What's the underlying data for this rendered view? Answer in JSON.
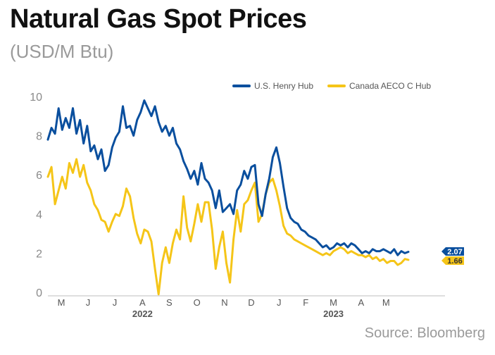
{
  "header": {
    "title": "Natural Gas Spot Prices",
    "subtitle": "(USD/M Btu)"
  },
  "footer": {
    "source": "Source: Bloomberg"
  },
  "chart_data": {
    "type": "line",
    "title": "Natural Gas Spot Prices",
    "subtitle": "(USD/M Btu)",
    "xlabel": "",
    "ylabel": "",
    "ylim": [
      0,
      10
    ],
    "yticks": [
      0,
      2,
      4,
      6,
      8,
      10
    ],
    "xlim": [
      "2022-03-01",
      "2023-05-20"
    ],
    "month_ticks": [
      {
        "label": "M",
        "date": "2022-03-16"
      },
      {
        "label": "J",
        "date": "2022-04-15"
      },
      {
        "label": "J",
        "date": "2022-05-15"
      },
      {
        "label": "A",
        "date": "2022-06-15"
      },
      {
        "label": "S",
        "date": "2022-07-15"
      },
      {
        "label": "O",
        "date": "2022-08-15"
      },
      {
        "label": "N",
        "date": "2022-09-15"
      },
      {
        "label": "D",
        "date": "2022-10-15"
      },
      {
        "label": "J",
        "date": "2022-11-15"
      },
      {
        "label": "F",
        "date": "2022-12-15"
      },
      {
        "label": "M",
        "date": "2023-01-15"
      },
      {
        "label": "A",
        "date": "2023-02-15"
      },
      {
        "label": "M",
        "date": "2023-03-15"
      }
    ],
    "year_labels": [
      {
        "label": "2022",
        "date": "2022-06-15"
      },
      {
        "label": "2023",
        "date": "2023-01-15"
      }
    ],
    "grid": false,
    "legend_position": "top-right",
    "series": [
      {
        "name": "U.S. Henry Hub",
        "color": "#0a4f9e",
        "end_label": "2.07",
        "points": [
          [
            "2022-03-01",
            7.8
          ],
          [
            "2022-03-05",
            8.4
          ],
          [
            "2022-03-09",
            8.1
          ],
          [
            "2022-03-13",
            9.4
          ],
          [
            "2022-03-17",
            8.3
          ],
          [
            "2022-03-21",
            8.9
          ],
          [
            "2022-03-25",
            8.4
          ],
          [
            "2022-03-29",
            9.4
          ],
          [
            "2022-04-02",
            8.1
          ],
          [
            "2022-04-06",
            8.8
          ],
          [
            "2022-04-10",
            7.6
          ],
          [
            "2022-04-14",
            8.5
          ],
          [
            "2022-04-18",
            7.2
          ],
          [
            "2022-04-22",
            7.5
          ],
          [
            "2022-04-26",
            6.8
          ],
          [
            "2022-04-30",
            7.3
          ],
          [
            "2022-05-04",
            6.2
          ],
          [
            "2022-05-08",
            6.5
          ],
          [
            "2022-05-12",
            7.4
          ],
          [
            "2022-05-16",
            7.9
          ],
          [
            "2022-05-20",
            8.2
          ],
          [
            "2022-05-24",
            9.5
          ],
          [
            "2022-05-28",
            8.4
          ],
          [
            "2022-06-01",
            8.5
          ],
          [
            "2022-06-05",
            8.0
          ],
          [
            "2022-06-09",
            8.8
          ],
          [
            "2022-06-13",
            9.2
          ],
          [
            "2022-06-17",
            9.8
          ],
          [
            "2022-06-21",
            9.4
          ],
          [
            "2022-06-25",
            9.0
          ],
          [
            "2022-06-29",
            9.5
          ],
          [
            "2022-07-03",
            8.7
          ],
          [
            "2022-07-07",
            8.2
          ],
          [
            "2022-07-11",
            8.5
          ],
          [
            "2022-07-15",
            8.0
          ],
          [
            "2022-07-19",
            8.4
          ],
          [
            "2022-07-23",
            7.6
          ],
          [
            "2022-07-27",
            7.3
          ],
          [
            "2022-07-31",
            6.7
          ],
          [
            "2022-08-04",
            6.3
          ],
          [
            "2022-08-08",
            5.8
          ],
          [
            "2022-08-12",
            6.2
          ],
          [
            "2022-08-16",
            5.5
          ],
          [
            "2022-08-20",
            6.6
          ],
          [
            "2022-08-24",
            5.8
          ],
          [
            "2022-08-28",
            5.6
          ],
          [
            "2022-09-01",
            5.2
          ],
          [
            "2022-09-05",
            4.3
          ],
          [
            "2022-09-09",
            5.2
          ],
          [
            "2022-09-13",
            4.1
          ],
          [
            "2022-09-17",
            4.3
          ],
          [
            "2022-09-21",
            4.5
          ],
          [
            "2022-09-25",
            4.0
          ],
          [
            "2022-09-29",
            5.2
          ],
          [
            "2022-10-03",
            5.5
          ],
          [
            "2022-10-07",
            6.2
          ],
          [
            "2022-10-11",
            5.8
          ],
          [
            "2022-10-15",
            6.4
          ],
          [
            "2022-10-19",
            6.5
          ],
          [
            "2022-10-23",
            4.5
          ],
          [
            "2022-10-27",
            3.9
          ],
          [
            "2022-10-31",
            5.0
          ],
          [
            "2022-11-04",
            5.8
          ],
          [
            "2022-11-08",
            6.9
          ],
          [
            "2022-11-12",
            7.4
          ],
          [
            "2022-11-16",
            6.6
          ],
          [
            "2022-11-20",
            5.4
          ],
          [
            "2022-11-24",
            4.3
          ],
          [
            "2022-11-28",
            3.8
          ],
          [
            "2022-12-02",
            3.6
          ],
          [
            "2022-12-06",
            3.5
          ],
          [
            "2022-12-10",
            3.2
          ],
          [
            "2022-12-14",
            3.1
          ],
          [
            "2022-12-18",
            2.9
          ],
          [
            "2022-12-22",
            2.8
          ],
          [
            "2022-12-26",
            2.7
          ],
          [
            "2022-12-30",
            2.5
          ],
          [
            "2023-01-03",
            2.3
          ],
          [
            "2023-01-07",
            2.4
          ],
          [
            "2023-01-11",
            2.2
          ],
          [
            "2023-01-15",
            2.3
          ],
          [
            "2023-01-19",
            2.5
          ],
          [
            "2023-01-23",
            2.4
          ],
          [
            "2023-01-27",
            2.5
          ],
          [
            "2023-01-31",
            2.3
          ],
          [
            "2023-02-04",
            2.5
          ],
          [
            "2023-02-08",
            2.4
          ],
          [
            "2023-02-12",
            2.2
          ],
          [
            "2023-02-16",
            2.0
          ],
          [
            "2023-02-20",
            2.1
          ],
          [
            "2023-02-24",
            2.0
          ],
          [
            "2023-02-28",
            2.2
          ],
          [
            "2023-03-04",
            2.1
          ],
          [
            "2023-03-08",
            2.1
          ],
          [
            "2023-03-12",
            2.2
          ],
          [
            "2023-03-16",
            2.1
          ],
          [
            "2023-03-20",
            2.0
          ],
          [
            "2023-03-24",
            2.2
          ],
          [
            "2023-03-28",
            1.9
          ],
          [
            "2023-04-01",
            2.1
          ],
          [
            "2023-04-05",
            2.0
          ],
          [
            "2023-04-09",
            2.07
          ]
        ]
      },
      {
        "name": "Canada AECO C Hub",
        "color": "#f5c518",
        "end_label": "1.66",
        "points": [
          [
            "2022-03-01",
            5.9
          ],
          [
            "2022-03-05",
            6.4
          ],
          [
            "2022-03-09",
            4.5
          ],
          [
            "2022-03-13",
            5.2
          ],
          [
            "2022-03-17",
            5.9
          ],
          [
            "2022-03-21",
            5.3
          ],
          [
            "2022-03-25",
            6.6
          ],
          [
            "2022-03-29",
            6.1
          ],
          [
            "2022-04-02",
            6.8
          ],
          [
            "2022-04-06",
            5.9
          ],
          [
            "2022-04-10",
            6.5
          ],
          [
            "2022-04-14",
            5.6
          ],
          [
            "2022-04-18",
            5.2
          ],
          [
            "2022-04-22",
            4.5
          ],
          [
            "2022-04-26",
            4.2
          ],
          [
            "2022-04-30",
            3.7
          ],
          [
            "2022-05-04",
            3.6
          ],
          [
            "2022-05-08",
            3.1
          ],
          [
            "2022-05-12",
            3.6
          ],
          [
            "2022-05-16",
            4.0
          ],
          [
            "2022-05-20",
            3.9
          ],
          [
            "2022-05-24",
            4.4
          ],
          [
            "2022-05-28",
            5.3
          ],
          [
            "2022-06-01",
            4.9
          ],
          [
            "2022-06-05",
            3.8
          ],
          [
            "2022-06-09",
            3.0
          ],
          [
            "2022-06-13",
            2.5
          ],
          [
            "2022-06-17",
            3.2
          ],
          [
            "2022-06-21",
            3.1
          ],
          [
            "2022-06-25",
            2.6
          ],
          [
            "2022-06-29",
            1.2
          ],
          [
            "2022-07-03",
            -0.1
          ],
          [
            "2022-07-07",
            1.5
          ],
          [
            "2022-07-11",
            2.3
          ],
          [
            "2022-07-15",
            1.5
          ],
          [
            "2022-07-19",
            2.5
          ],
          [
            "2022-07-23",
            3.2
          ],
          [
            "2022-07-27",
            2.7
          ],
          [
            "2022-07-31",
            4.9
          ],
          [
            "2022-08-04",
            3.3
          ],
          [
            "2022-08-08",
            2.6
          ],
          [
            "2022-08-12",
            3.5
          ],
          [
            "2022-08-16",
            4.5
          ],
          [
            "2022-08-20",
            3.6
          ],
          [
            "2022-08-24",
            4.6
          ],
          [
            "2022-08-28",
            4.6
          ],
          [
            "2022-09-01",
            3.2
          ],
          [
            "2022-09-05",
            1.2
          ],
          [
            "2022-09-09",
            2.3
          ],
          [
            "2022-09-13",
            3.1
          ],
          [
            "2022-09-17",
            1.5
          ],
          [
            "2022-09-21",
            0.5
          ],
          [
            "2022-09-25",
            2.7
          ],
          [
            "2022-09-29",
            4.2
          ],
          [
            "2022-10-03",
            3.1
          ],
          [
            "2022-10-07",
            4.5
          ],
          [
            "2022-10-11",
            4.7
          ],
          [
            "2022-10-15",
            5.2
          ],
          [
            "2022-10-19",
            5.6
          ],
          [
            "2022-10-23",
            3.6
          ],
          [
            "2022-10-27",
            4.0
          ],
          [
            "2022-10-31",
            5.0
          ],
          [
            "2022-11-04",
            5.6
          ],
          [
            "2022-11-08",
            5.8
          ],
          [
            "2022-11-12",
            5.2
          ],
          [
            "2022-11-16",
            4.4
          ],
          [
            "2022-11-20",
            3.4
          ],
          [
            "2022-11-24",
            3.0
          ],
          [
            "2022-11-28",
            2.9
          ],
          [
            "2022-12-02",
            2.7
          ],
          [
            "2022-12-06",
            2.6
          ],
          [
            "2022-12-10",
            2.5
          ],
          [
            "2022-12-14",
            2.4
          ],
          [
            "2022-12-18",
            2.3
          ],
          [
            "2022-12-22",
            2.2
          ],
          [
            "2022-12-26",
            2.1
          ],
          [
            "2022-12-30",
            2.0
          ],
          [
            "2023-01-03",
            1.9
          ],
          [
            "2023-01-07",
            2.0
          ],
          [
            "2023-01-11",
            1.9
          ],
          [
            "2023-01-15",
            2.1
          ],
          [
            "2023-01-19",
            2.2
          ],
          [
            "2023-01-23",
            2.3
          ],
          [
            "2023-01-27",
            2.2
          ],
          [
            "2023-01-31",
            2.0
          ],
          [
            "2023-02-04",
            2.1
          ],
          [
            "2023-02-08",
            2.0
          ],
          [
            "2023-02-12",
            1.9
          ],
          [
            "2023-02-16",
            1.9
          ],
          [
            "2023-02-20",
            1.8
          ],
          [
            "2023-02-24",
            1.9
          ],
          [
            "2023-02-28",
            1.7
          ],
          [
            "2023-03-04",
            1.8
          ],
          [
            "2023-03-08",
            1.6
          ],
          [
            "2023-03-12",
            1.7
          ],
          [
            "2023-03-16",
            1.5
          ],
          [
            "2023-03-20",
            1.6
          ],
          [
            "2023-03-24",
            1.6
          ],
          [
            "2023-03-28",
            1.4
          ],
          [
            "2023-04-01",
            1.5
          ],
          [
            "2023-04-05",
            1.7
          ],
          [
            "2023-04-09",
            1.66
          ]
        ]
      }
    ]
  }
}
